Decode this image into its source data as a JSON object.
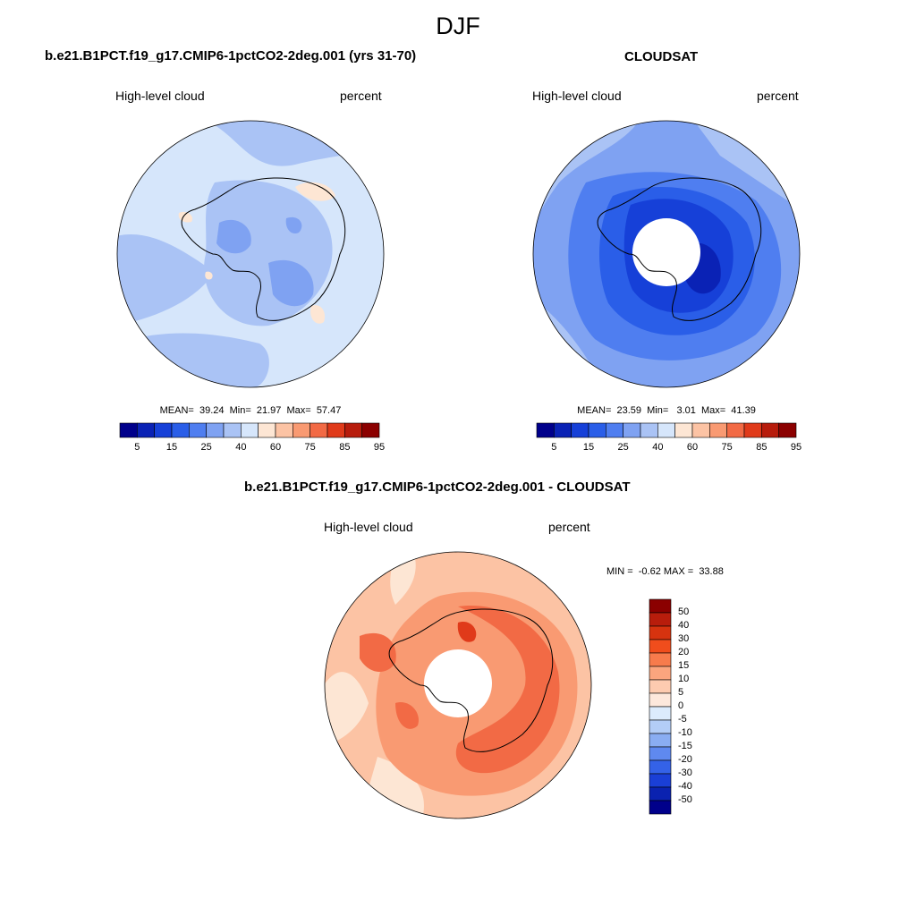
{
  "figure": {
    "season": "DJF",
    "panel_left": {
      "title": "b.e21.B1PCT.f19_g17.CMIP6-1pctCO2-2deg.001 (yrs 31-70)",
      "variable": "High-level cloud",
      "units": "percent",
      "stats": "MEAN=  39.24  Min=  21.97  Max=  57.47",
      "colorbar_labels": [
        "5",
        "15",
        "25",
        "40",
        "60",
        "75",
        "85",
        "95"
      ]
    },
    "panel_right": {
      "title": "CLOUDSAT",
      "variable": "High-level cloud",
      "units": "percent",
      "stats": "MEAN=  23.59  Min=   3.01  Max=  41.39",
      "colorbar_labels": [
        "5",
        "15",
        "25",
        "40",
        "60",
        "75",
        "85",
        "95"
      ]
    },
    "panel_diff": {
      "title": "b.e21.B1PCT.f19_g17.CMIP6-1pctCO2-2deg.001 - CLOUDSAT",
      "variable": "High-level cloud",
      "units": "percent",
      "stats": "MIN =  -0.62 MAX =  33.88",
      "colorbar_labels": [
        "50",
        "40",
        "30",
        "20",
        "15",
        "10",
        "5",
        "0",
        "-5",
        "-10",
        "-15",
        "-20",
        "-30",
        "-40",
        "-50"
      ]
    },
    "colors": {
      "abs_scale": [
        "#00008b",
        "#0a22b5",
        "#1640d8",
        "#2a5ee8",
        "#4f7ef0",
        "#7fa2f2",
        "#aac3f5",
        "#d6e6fb",
        "#fde6d4",
        "#fcc3a4",
        "#f99a72",
        "#f26a45",
        "#e03a1a",
        "#b71c0c",
        "#8b0000"
      ],
      "diff_scale": [
        "#8b0000",
        "#b81d0c",
        "#d6330f",
        "#f04d1c",
        "#f77b4c",
        "#fba57e",
        "#fdcbb0",
        "#fde8dc",
        "#dcebfc",
        "#b3cdf7",
        "#8aadf2",
        "#5f89ef",
        "#3462e8",
        "#1a3fd6",
        "#0a22b0",
        "#00008b"
      ],
      "land_outline": "#000000"
    }
  }
}
